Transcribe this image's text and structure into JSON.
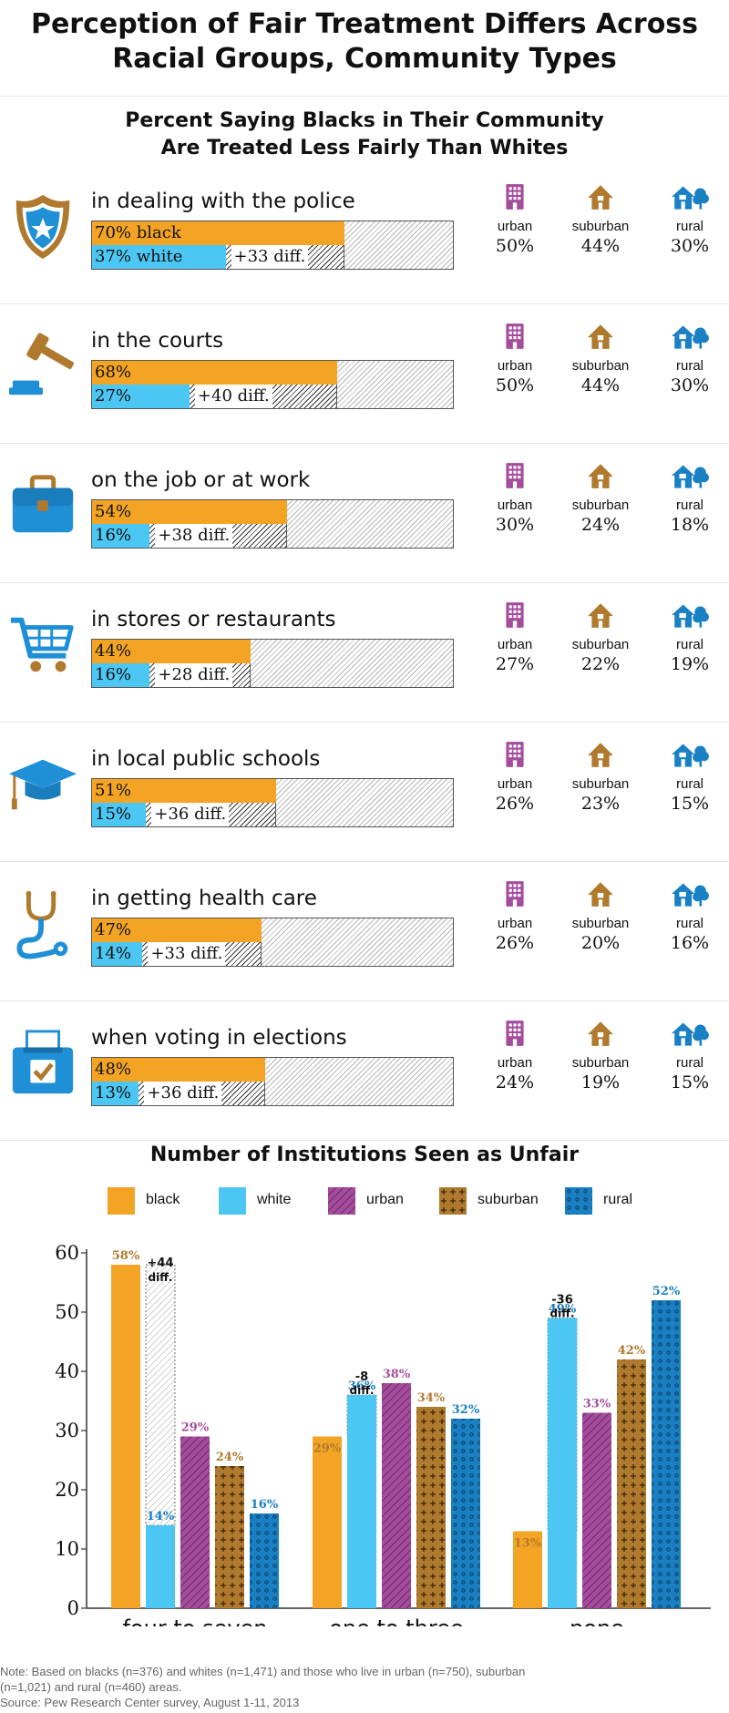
{
  "title_line1": "Perception of Fair Treatment Differs Across",
  "title_line2": "Racial Groups, Community Types",
  "subtitle_line1": "Percent Saying Blacks in Their Community",
  "subtitle_line2": "Are Treated Less Fairly Than Whites",
  "colors": {
    "black": "#f3a424",
    "white": "#4cc6f2",
    "urban": "#a54d9d",
    "suburban": "#b07a2e",
    "rural": "#1a80c4",
    "icon_brown": "#b07a2e",
    "icon_blue": "#1f8fd6"
  },
  "community_labels": {
    "urban": "urban",
    "suburban": "suburban",
    "rural": "rural"
  },
  "institutions": [
    {
      "label": "in dealing with the police",
      "icon": "police-badge-icon",
      "black_pct": 70,
      "white_pct": 37,
      "black_text": "70% black",
      "white_text": "37% white",
      "diff_text": "+33 diff.",
      "urban": "50%",
      "suburban": "44%",
      "rural": "30%"
    },
    {
      "label": "in the courts",
      "icon": "gavel-icon",
      "black_pct": 68,
      "white_pct": 27,
      "black_text": "68%",
      "white_text": "27%",
      "diff_text": "+40 diff.",
      "urban": "50%",
      "suburban": "44%",
      "rural": "30%"
    },
    {
      "label": "on the job or at work",
      "icon": "briefcase-icon",
      "black_pct": 54,
      "white_pct": 16,
      "black_text": "54%",
      "white_text": "16%",
      "diff_text": "+38 diff.",
      "urban": "30%",
      "suburban": "24%",
      "rural": "18%"
    },
    {
      "label": "in stores or restaurants",
      "icon": "shopping-cart-icon",
      "black_pct": 44,
      "white_pct": 16,
      "black_text": "44%",
      "white_text": "16%",
      "diff_text": "+28 diff.",
      "urban": "27%",
      "suburban": "22%",
      "rural": "19%"
    },
    {
      "label": "in local public schools",
      "icon": "graduation-cap-icon",
      "black_pct": 51,
      "white_pct": 15,
      "black_text": "51%",
      "white_text": "15%",
      "diff_text": "+36 diff.",
      "urban": "26%",
      "suburban": "23%",
      "rural": "15%"
    },
    {
      "label": "in getting health care",
      "icon": "stethoscope-icon",
      "black_pct": 47,
      "white_pct": 14,
      "black_text": "47%",
      "white_text": "14%",
      "diff_text": "+33 diff.",
      "urban": "26%",
      "suburban": "20%",
      "rural": "16%"
    },
    {
      "label": "when voting in elections",
      "icon": "ballot-box-icon",
      "black_pct": 48,
      "white_pct": 13,
      "black_text": "48%",
      "white_text": "13%",
      "diff_text": "+36 diff.",
      "urban": "24%",
      "suburban": "19%",
      "rural": "15%"
    }
  ],
  "chart_data": {
    "type": "bar",
    "title": "Number of Institutions Seen as Unfair",
    "categories": [
      "four to seven",
      "one to three",
      "none"
    ],
    "series": [
      {
        "name": "black",
        "values": [
          58,
          29,
          13
        ]
      },
      {
        "name": "white",
        "values": [
          14,
          36,
          49
        ]
      },
      {
        "name": "urban",
        "values": [
          29,
          38,
          33
        ]
      },
      {
        "name": "suburban",
        "values": [
          24,
          34,
          42
        ]
      },
      {
        "name": "rural",
        "values": [
          16,
          32,
          52
        ]
      }
    ],
    "value_labels": {
      "black": [
        "58%",
        "29%",
        "13%"
      ],
      "white": [
        "14%",
        "36%",
        "49%"
      ],
      "urban": [
        "29%",
        "38%",
        "33%"
      ],
      "suburban": [
        "24%",
        "34%",
        "42%"
      ],
      "rural": [
        "16%",
        "32%",
        "52%"
      ]
    },
    "diff": {
      "values": [
        44,
        -8,
        -36
      ],
      "labels": [
        "+44",
        "-8",
        "-36"
      ],
      "suffix": "diff."
    },
    "ylim": [
      0,
      60
    ],
    "yticks": [
      0,
      10,
      20,
      30,
      40,
      50,
      60
    ],
    "legend_position": "top",
    "grid": false
  },
  "note_line1": "Note: Based on blacks (n=376) and whites (n=1,471) and those who live in urban (n=750), suburban",
  "note_line2": "(n=1,021) and rural (n=460) areas.",
  "source": "Source: Pew Research Center survey, August 1-11, 2013"
}
